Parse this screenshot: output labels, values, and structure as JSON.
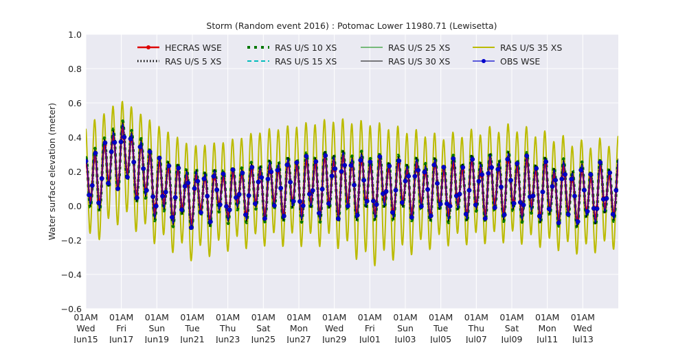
{
  "chart_data": {
    "type": "line",
    "title": "Storm (Random event 2016) : Potomac Lower 11980.71 (Lewisetta)",
    "xlabel": "",
    "ylabel": "Water surface elevation (meter)",
    "ylim": [
      -0.6,
      1.0
    ],
    "xlim": [
      "2016-06-15 01:00",
      "2016-07-15 01:00"
    ],
    "yticks": [
      "1.0",
      "0.8",
      "0.6",
      "0.4",
      "0.2",
      "0.0",
      "−0.2",
      "−0.4",
      "−0.6"
    ],
    "xticks": [
      {
        "time": "01AM",
        "day": "Wed",
        "date": "Jun15"
      },
      {
        "time": "01AM",
        "day": "Fri",
        "date": "Jun17"
      },
      {
        "time": "01AM",
        "day": "Sun",
        "date": "Jun19"
      },
      {
        "time": "01AM",
        "day": "Tue",
        "date": "Jun21"
      },
      {
        "time": "01AM",
        "day": "Thu",
        "date": "Jun23"
      },
      {
        "time": "01AM",
        "day": "Sat",
        "date": "Jun25"
      },
      {
        "time": "01AM",
        "day": "Mon",
        "date": "Jun27"
      },
      {
        "time": "01AM",
        "day": "Wed",
        "date": "Jun29"
      },
      {
        "time": "01AM",
        "day": "Fri",
        "date": "Jul01"
      },
      {
        "time": "01AM",
        "day": "Sun",
        "date": "Jul03"
      },
      {
        "time": "01AM",
        "day": "Tue",
        "date": "Jul05"
      },
      {
        "time": "01AM",
        "day": "Thu",
        "date": "Jul07"
      },
      {
        "time": "01AM",
        "day": "Sat",
        "date": "Jul09"
      },
      {
        "time": "01AM",
        "day": "Mon",
        "date": "Jul11"
      },
      {
        "time": "01AM",
        "day": "Wed",
        "date": "Jul13"
      }
    ],
    "grid": true,
    "legend_position": "top",
    "tidal_period_hours": 12.42,
    "series": [
      {
        "name": "HECRAS WSE",
        "color": "#dd0000",
        "style": "solid-marker",
        "mean": [
          [
            0,
            0.1
          ],
          [
            2,
            0.32
          ],
          [
            4,
            0.12
          ],
          [
            6,
            0.05
          ],
          [
            10,
            0.1
          ],
          [
            14,
            0.13
          ],
          [
            20,
            0.1
          ],
          [
            24,
            0.12
          ],
          [
            28,
            0.06
          ],
          [
            30,
            0.1
          ]
        ],
        "amplitude": [
          [
            0,
            0.14
          ],
          [
            4,
            0.14
          ],
          [
            8,
            0.1
          ],
          [
            14,
            0.15
          ],
          [
            18,
            0.12
          ],
          [
            24,
            0.14
          ],
          [
            30,
            0.12
          ]
        ]
      },
      {
        "name": "RAS U/S 5 XS",
        "color": "#000000",
        "style": "dotted",
        "mean": [
          [
            0,
            0.1
          ],
          [
            2,
            0.32
          ],
          [
            4,
            0.12
          ],
          [
            6,
            0.05
          ],
          [
            10,
            0.1
          ],
          [
            14,
            0.13
          ],
          [
            20,
            0.1
          ],
          [
            24,
            0.12
          ],
          [
            28,
            0.06
          ],
          [
            30,
            0.1
          ]
        ],
        "amplitude": [
          [
            0,
            0.15
          ],
          [
            4,
            0.15
          ],
          [
            8,
            0.11
          ],
          [
            14,
            0.16
          ],
          [
            18,
            0.13
          ],
          [
            24,
            0.15
          ],
          [
            30,
            0.13
          ]
        ]
      },
      {
        "name": "RAS U/S 10 XS",
        "color": "#007700",
        "style": "dash-thick",
        "mean": [
          [
            0,
            0.1
          ],
          [
            2,
            0.32
          ],
          [
            4,
            0.12
          ],
          [
            6,
            0.05
          ],
          [
            10,
            0.1
          ],
          [
            14,
            0.13
          ],
          [
            20,
            0.1
          ],
          [
            24,
            0.12
          ],
          [
            28,
            0.06
          ],
          [
            30,
            0.1
          ]
        ],
        "amplitude": [
          [
            0,
            0.18
          ],
          [
            4,
            0.18
          ],
          [
            8,
            0.14
          ],
          [
            14,
            0.19
          ],
          [
            18,
            0.16
          ],
          [
            24,
            0.18
          ],
          [
            30,
            0.16
          ]
        ]
      },
      {
        "name": "RAS U/S 15 XS",
        "color": "#00bbbb",
        "style": "dashed",
        "mean": [
          [
            0,
            0.1
          ],
          [
            2,
            0.3
          ],
          [
            4,
            0.12
          ],
          [
            6,
            0.05
          ],
          [
            10,
            0.1
          ],
          [
            14,
            0.13
          ],
          [
            20,
            0.1
          ],
          [
            24,
            0.12
          ],
          [
            28,
            0.06
          ],
          [
            30,
            0.1
          ]
        ],
        "amplitude": [
          [
            0,
            0.13
          ],
          [
            4,
            0.13
          ],
          [
            8,
            0.09
          ],
          [
            14,
            0.14
          ],
          [
            18,
            0.11
          ],
          [
            24,
            0.13
          ],
          [
            30,
            0.11
          ]
        ]
      },
      {
        "name": "RAS U/S 25 XS",
        "color": "#008800",
        "style": "solid",
        "mean": [
          [
            0,
            0.1
          ],
          [
            2,
            0.32
          ],
          [
            4,
            0.12
          ],
          [
            6,
            0.05
          ],
          [
            10,
            0.1
          ],
          [
            14,
            0.13
          ],
          [
            20,
            0.1
          ],
          [
            24,
            0.12
          ],
          [
            28,
            0.06
          ],
          [
            30,
            0.1
          ]
        ],
        "amplitude": [
          [
            0,
            0.16
          ],
          [
            4,
            0.16
          ],
          [
            8,
            0.12
          ],
          [
            14,
            0.17
          ],
          [
            18,
            0.14
          ],
          [
            24,
            0.16
          ],
          [
            30,
            0.14
          ]
        ]
      },
      {
        "name": "RAS U/S 30 XS",
        "color": "#000000",
        "style": "solid",
        "mean": [
          [
            0,
            0.1
          ],
          [
            2,
            0.32
          ],
          [
            4,
            0.12
          ],
          [
            6,
            0.05
          ],
          [
            10,
            0.1
          ],
          [
            14,
            0.13
          ],
          [
            20,
            0.1
          ],
          [
            24,
            0.12
          ],
          [
            28,
            0.06
          ],
          [
            30,
            0.1
          ]
        ],
        "amplitude": [
          [
            0,
            0.17
          ],
          [
            4,
            0.17
          ],
          [
            8,
            0.13
          ],
          [
            14,
            0.18
          ],
          [
            18,
            0.15
          ],
          [
            24,
            0.17
          ],
          [
            30,
            0.15
          ]
        ]
      },
      {
        "name": "RAS U/S 35 XS",
        "color": "#bbbb00",
        "style": "solid-thick",
        "mean": [
          [
            0,
            0.12
          ],
          [
            2,
            0.28
          ],
          [
            4,
            0.14
          ],
          [
            6,
            0.03
          ],
          [
            10,
            0.12
          ],
          [
            14,
            0.15
          ],
          [
            16,
            0.08
          ],
          [
            20,
            0.1
          ],
          [
            24,
            0.14
          ],
          [
            28,
            0.05
          ],
          [
            30,
            0.08
          ]
        ],
        "amplitude": [
          [
            0,
            0.34
          ],
          [
            4,
            0.33
          ],
          [
            8,
            0.3
          ],
          [
            14,
            0.35
          ],
          [
            16,
            0.4
          ],
          [
            20,
            0.3
          ],
          [
            24,
            0.32
          ],
          [
            30,
            0.3
          ]
        ]
      },
      {
        "name": "OBS WSE",
        "color": "#0000cc",
        "style": "line-marker",
        "mean": [
          [
            0,
            0.1
          ],
          [
            2,
            0.32
          ],
          [
            4,
            0.12
          ],
          [
            6,
            0.05
          ],
          [
            10,
            0.1
          ],
          [
            14,
            0.13
          ],
          [
            20,
            0.1
          ],
          [
            24,
            0.12
          ],
          [
            28,
            0.06
          ],
          [
            30,
            0.1
          ]
        ],
        "amplitude": [
          [
            0,
            0.16
          ],
          [
            4,
            0.16
          ],
          [
            8,
            0.12
          ],
          [
            14,
            0.17
          ],
          [
            18,
            0.14
          ],
          [
            24,
            0.16
          ],
          [
            30,
            0.14
          ]
        ]
      }
    ]
  }
}
